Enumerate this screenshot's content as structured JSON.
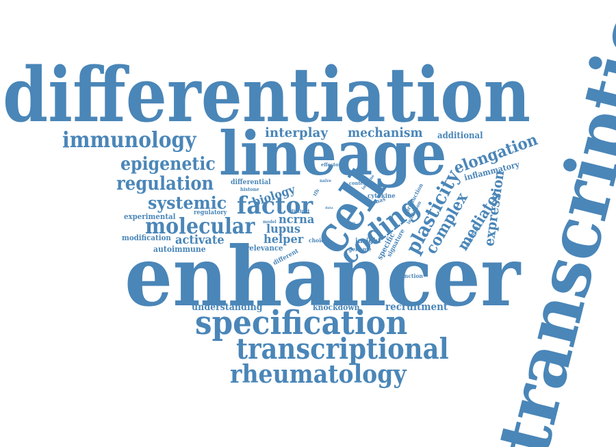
{
  "colors": {
    "word": "#4a86b8",
    "background": "#ffffff"
  },
  "words": [
    "differentiation",
    "transcription",
    "enhancer",
    "lineage",
    "specification",
    "transcriptional",
    "rheumatology",
    "immunology",
    "epigenetic",
    "regulation",
    "systemic",
    "molecular",
    "factor",
    "cell",
    "coding",
    "interplay",
    "mechanism",
    "additional",
    "elongation",
    "plasticity",
    "complex",
    "mediator",
    "expression",
    "inflammatory",
    "biology",
    "lupus",
    "ncrna",
    "helper",
    "activate",
    "modification",
    "autoimmune",
    "experimental",
    "regulatory",
    "differential",
    "histone",
    "distinct",
    "model",
    "relevance",
    "different",
    "choice",
    "insight",
    "genome",
    "specific",
    "signature",
    "cytokine",
    "ncrnas",
    "inhibition",
    "production",
    "functional",
    "function",
    "context",
    "immune",
    "naive",
    "effector",
    "tfh",
    "data",
    "locus",
    "understanding",
    "knockdown",
    "recruitment"
  ]
}
